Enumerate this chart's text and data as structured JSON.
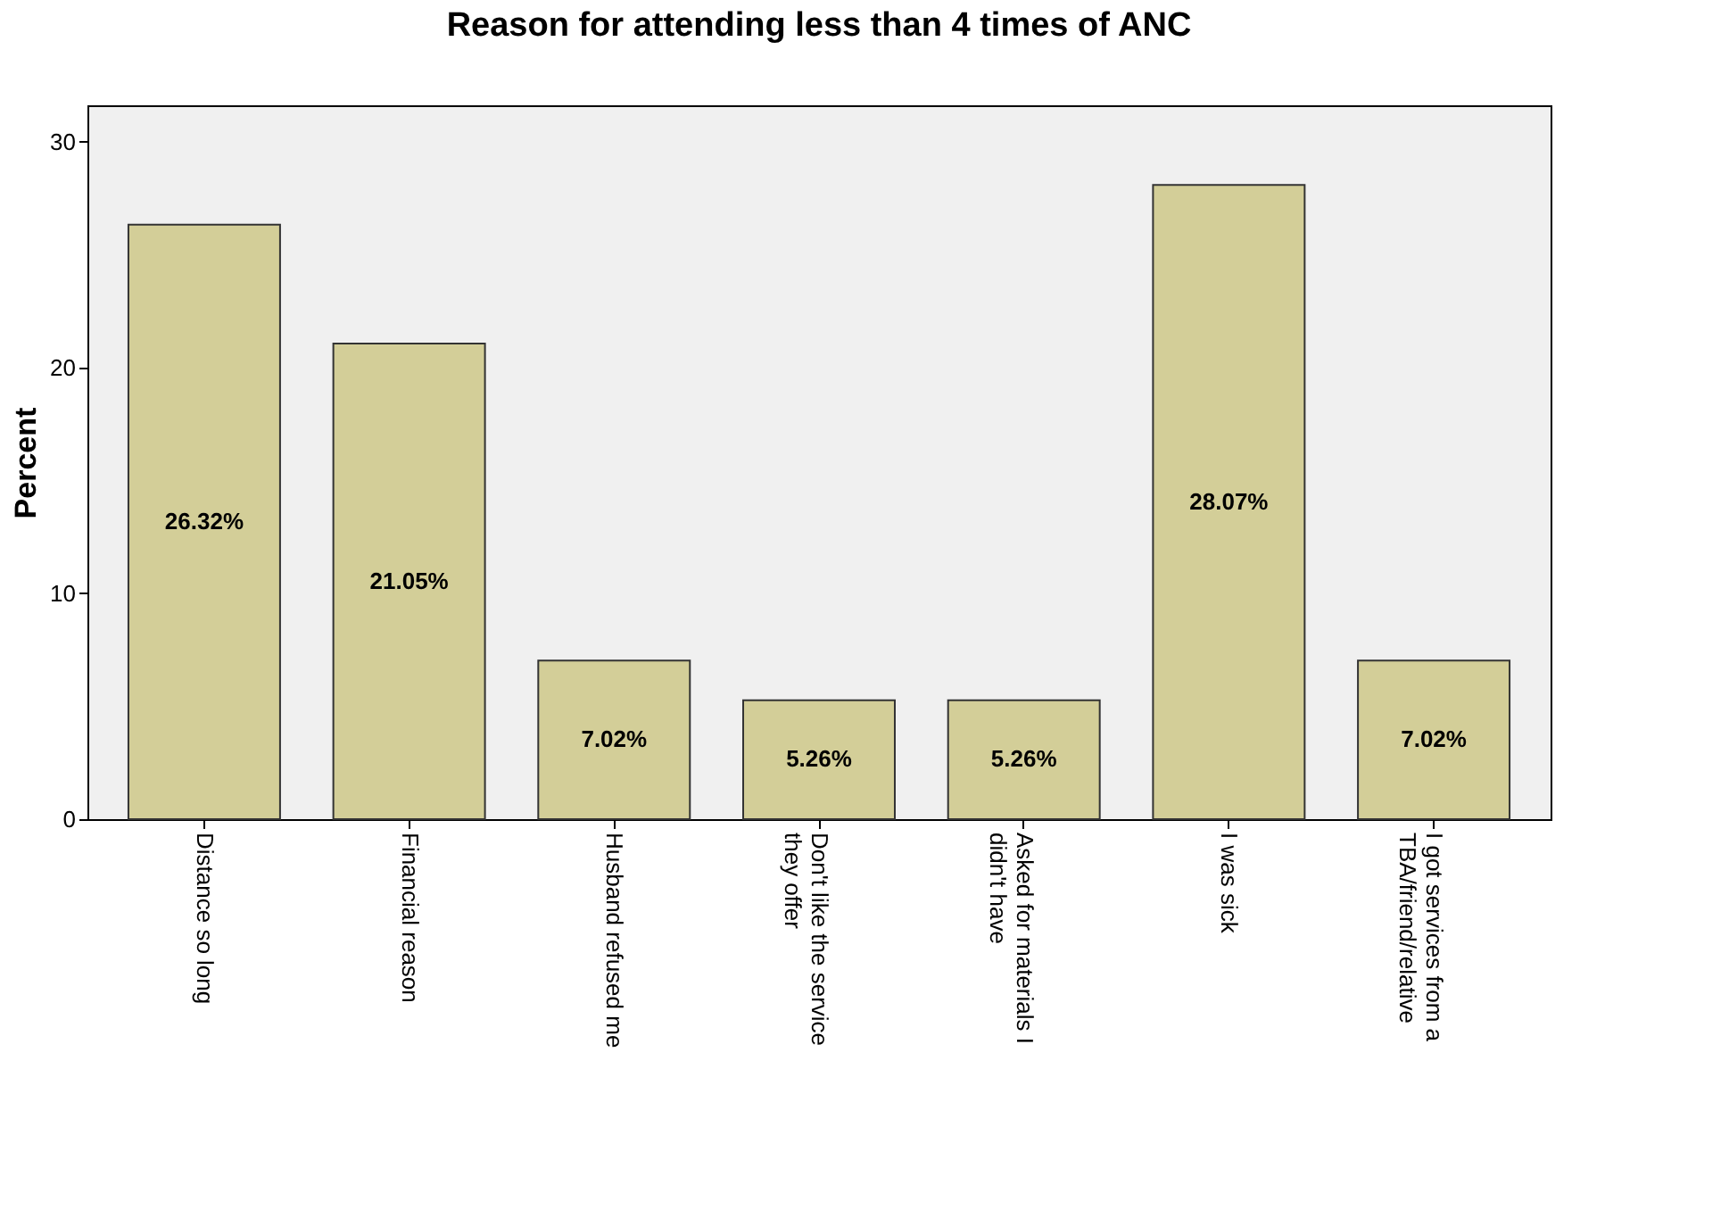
{
  "chart_data": {
    "type": "bar",
    "title": "Reason for attending less than 4 times of ANC",
    "ylabel": "Percent",
    "categories": [
      "Distance so long",
      "Financial reason",
      "Husband refused me",
      "Don't like the service they offer",
      "Asked for materials I didn't have",
      "I was sick",
      "I got services from a TBA/friend/relative"
    ],
    "values": [
      26.32,
      21.05,
      7.02,
      5.26,
      5.26,
      28.07,
      7.02
    ],
    "value_labels": [
      "26.32%",
      "21.05%",
      "7.02%",
      "5.26%",
      "5.26%",
      "28.07%",
      "7.02%"
    ],
    "color": "#d3ce98",
    "ylim": [
      0,
      31.6
    ],
    "yticks": [
      0,
      10,
      20,
      30
    ],
    "grid": false
  }
}
